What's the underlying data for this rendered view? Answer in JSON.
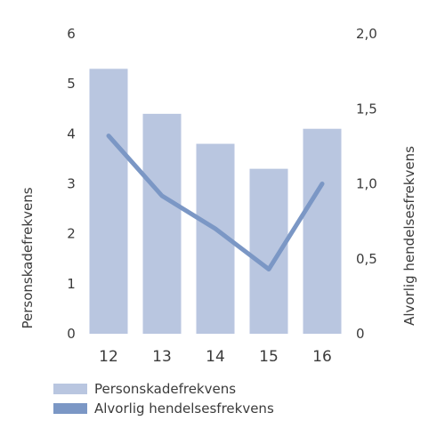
{
  "chart_data": {
    "type": "bar+line",
    "categories": [
      "12",
      "13",
      "14",
      "15",
      "16"
    ],
    "series": [
      {
        "name": "Personskadefrekvens",
        "type": "bar",
        "axis": "left",
        "values": [
          5.3,
          4.4,
          3.8,
          3.3,
          4.1
        ]
      },
      {
        "name": "Alvorlig hendelsesfrekvens",
        "type": "line",
        "axis": "right",
        "values": [
          1.32,
          0.92,
          0.7,
          0.43,
          1.0
        ]
      }
    ],
    "y_left": {
      "label": "Personskadefrekvens",
      "ylim": [
        0,
        6
      ],
      "ticks": [
        "0",
        "1",
        "2",
        "3",
        "4",
        "5",
        "6"
      ]
    },
    "y_right": {
      "label": "Alvorlig hendelsesfrekvens",
      "ylim": [
        0,
        2
      ],
      "ticks": [
        "0",
        "0,5",
        "1,0",
        "1,5",
        "2,0"
      ]
    },
    "grid": false,
    "legend_position": "bottom-left",
    "colors": {
      "bar": "#b9c6e0",
      "line": "#7b97c5",
      "text": "#3b3b3b"
    }
  }
}
